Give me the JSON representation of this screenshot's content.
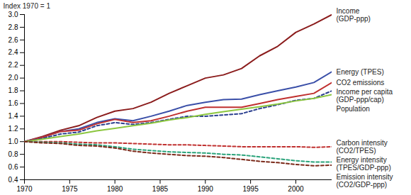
{
  "chart_data": {
    "type": "line",
    "title": "Index 1970 = 1",
    "x": [
      1970,
      1972,
      1974,
      1976,
      1978,
      1980,
      1982,
      1984,
      1986,
      1988,
      1990,
      1992,
      1994,
      1996,
      1998,
      2000,
      2002,
      2004
    ],
    "xlim": [
      1970,
      2004
    ],
    "xticks": [
      1970,
      1975,
      1980,
      1985,
      1990,
      1995,
      2000
    ],
    "ylim": [
      0.4,
      3.0
    ],
    "yticks": [
      0.4,
      0.6,
      0.8,
      {
        "value": 1,
        "label": "1.0"
      },
      1.2,
      1.4,
      1.6,
      1.8,
      {
        "value": 2,
        "label": "2.0"
      },
      2.2,
      2.4,
      2.6,
      2.8,
      {
        "value": 3,
        "label": "3.0"
      }
    ],
    "grid": false,
    "series": [
      {
        "name": "Income\n(GDP-ppp)",
        "color": "#8b1c1c",
        "line_style": "solid",
        "values": [
          1.0,
          1.08,
          1.18,
          1.25,
          1.38,
          1.48,
          1.52,
          1.62,
          1.76,
          1.88,
          2.0,
          2.05,
          2.15,
          2.35,
          2.5,
          2.72,
          2.85,
          3.0
        ]
      },
      {
        "name": "Energy (TPES)",
        "color": "#3a4fa8",
        "line_style": "solid",
        "values": [
          1.0,
          1.07,
          1.16,
          1.2,
          1.3,
          1.36,
          1.33,
          1.4,
          1.48,
          1.57,
          1.62,
          1.66,
          1.67,
          1.74,
          1.8,
          1.86,
          1.93,
          2.1
        ]
      },
      {
        "name": "CO2 emissions",
        "color": "#c0302f",
        "line_style": "solid",
        "values": [
          1.0,
          1.07,
          1.16,
          1.18,
          1.28,
          1.35,
          1.3,
          1.33,
          1.4,
          1.48,
          1.54,
          1.54,
          1.54,
          1.6,
          1.66,
          1.71,
          1.76,
          1.93
        ]
      },
      {
        "name": "Income per capita\n(GDP-ppp/cap)",
        "color": "#2b3f8f",
        "line_style": "dashed",
        "values": [
          1.0,
          1.05,
          1.12,
          1.15,
          1.25,
          1.3,
          1.27,
          1.3,
          1.35,
          1.4,
          1.4,
          1.42,
          1.44,
          1.52,
          1.58,
          1.65,
          1.68,
          1.8
        ]
      },
      {
        "name": "Population",
        "color": "#8cc63f",
        "line_style": "solid",
        "values": [
          1.0,
          1.04,
          1.08,
          1.12,
          1.17,
          1.21,
          1.25,
          1.29,
          1.34,
          1.38,
          1.43,
          1.47,
          1.51,
          1.55,
          1.59,
          1.64,
          1.68,
          1.74
        ]
      },
      {
        "name": "Carbon intensity\n(CO2/TPES)",
        "color": "#c0302f",
        "line_style": "dashed",
        "values": [
          1.0,
          1.0,
          1.0,
          0.99,
          0.98,
          0.98,
          0.97,
          0.96,
          0.95,
          0.95,
          0.94,
          0.93,
          0.92,
          0.92,
          0.92,
          0.92,
          0.91,
          0.92
        ]
      },
      {
        "name": "Energy intensity\n(TPES/GDP-ppp)",
        "color": "#2aa37a",
        "line_style": "dashed",
        "values": [
          1.0,
          0.99,
          0.98,
          0.96,
          0.95,
          0.92,
          0.88,
          0.86,
          0.84,
          0.83,
          0.82,
          0.8,
          0.79,
          0.76,
          0.73,
          0.7,
          0.68,
          0.68
        ]
      },
      {
        "name": "Emission intensity\n(CO2/GDP-ppp)",
        "color": "#7b2a1a",
        "line_style": "dashed",
        "values": [
          1.0,
          0.98,
          0.97,
          0.94,
          0.93,
          0.9,
          0.85,
          0.82,
          0.8,
          0.78,
          0.77,
          0.75,
          0.72,
          0.69,
          0.67,
          0.64,
          0.62,
          0.63
        ]
      }
    ]
  }
}
